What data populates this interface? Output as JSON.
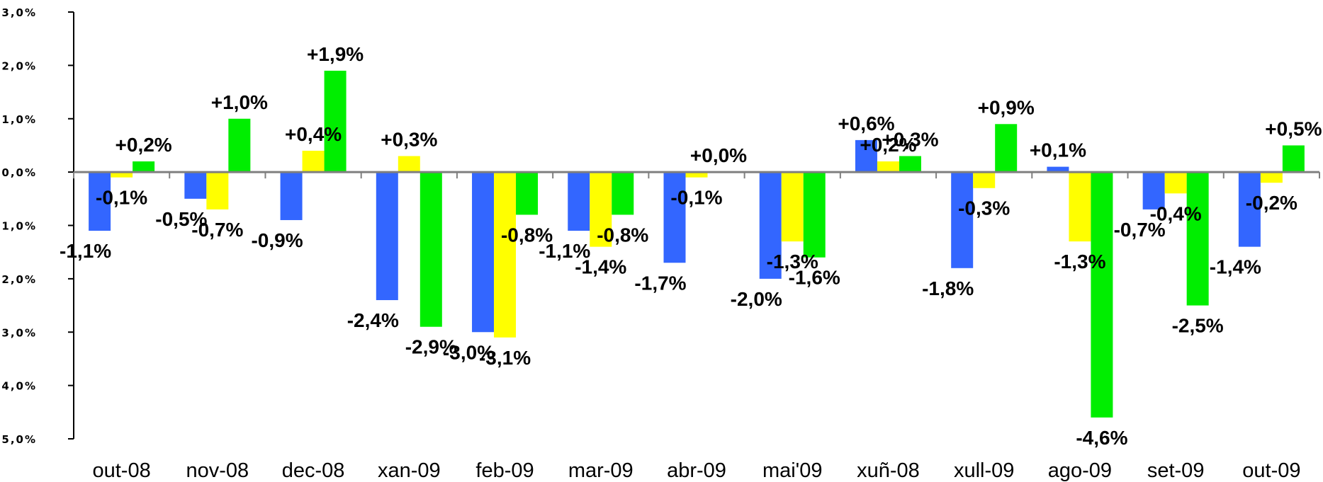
{
  "chart_data": {
    "type": "bar",
    "title": "",
    "xlabel": "",
    "ylabel": "",
    "ylim": [
      -5.0,
      3.0
    ],
    "yticks": [
      3,
      2,
      1,
      0,
      -1,
      -2,
      -3,
      -4,
      -5
    ],
    "ytick_labels": [
      "+3,0%",
      "+2,0%",
      "+1,0%",
      "+0,0%",
      "-1,0%",
      "-2,0%",
      "-3,0%",
      "-4,0%",
      "-5,0%"
    ],
    "grid": false,
    "legend": "none",
    "categories": [
      "out-08",
      "nov-08",
      "dec-08",
      "xan-09",
      "feb-09",
      "mar-09",
      "abr-09",
      "mai'09",
      "xuñ-08",
      "xull-09",
      "ago-09",
      "set-09",
      "out-09"
    ],
    "series": [
      {
        "color": "#3366ff",
        "values": [
          -1.1,
          -0.5,
          -0.9,
          -2.4,
          -3.0,
          -1.1,
          -1.7,
          -2.0,
          0.6,
          -1.8,
          0.1,
          -0.7,
          -1.4
        ],
        "labels": [
          "-1,1%",
          "-0,5%",
          "-0,9%",
          "-2,4%",
          "-3,0%",
          "-1,1%",
          "-1,7%",
          "-2,0%",
          "+0,6%",
          "-1,8%",
          "+0,1%",
          "-0,7%",
          "-1,4%"
        ]
      },
      {
        "color": "#ffff00",
        "values": [
          -0.1,
          -0.7,
          0.4,
          0.3,
          -3.1,
          -1.4,
          -0.1,
          -1.3,
          0.2,
          -0.3,
          -1.3,
          -0.4,
          -0.2
        ],
        "labels": [
          "-0,1%",
          "-0,7%",
          "+0,4%",
          "+0,3%",
          "-3,1%",
          "-1,4%",
          "-0,1%",
          "-1,3%",
          "+0,2%",
          "-0,3%",
          "-1,3%",
          "-0,4%",
          "-0,2%"
        ]
      },
      {
        "color": "#00ee00",
        "values": [
          0.2,
          1.0,
          1.9,
          -2.9,
          -0.8,
          -0.8,
          0.0,
          -1.6,
          0.3,
          0.9,
          -4.6,
          -2.5,
          0.5
        ],
        "labels": [
          "+0,2%",
          "+1,0%",
          "+1,9%",
          "-2,9%",
          "-0,8%",
          "-0,8%",
          "+0,0%",
          "-1,6%",
          "+0,3%",
          "+0,9%",
          "-4,6%",
          "-2,5%",
          "+0,5%"
        ]
      }
    ]
  }
}
